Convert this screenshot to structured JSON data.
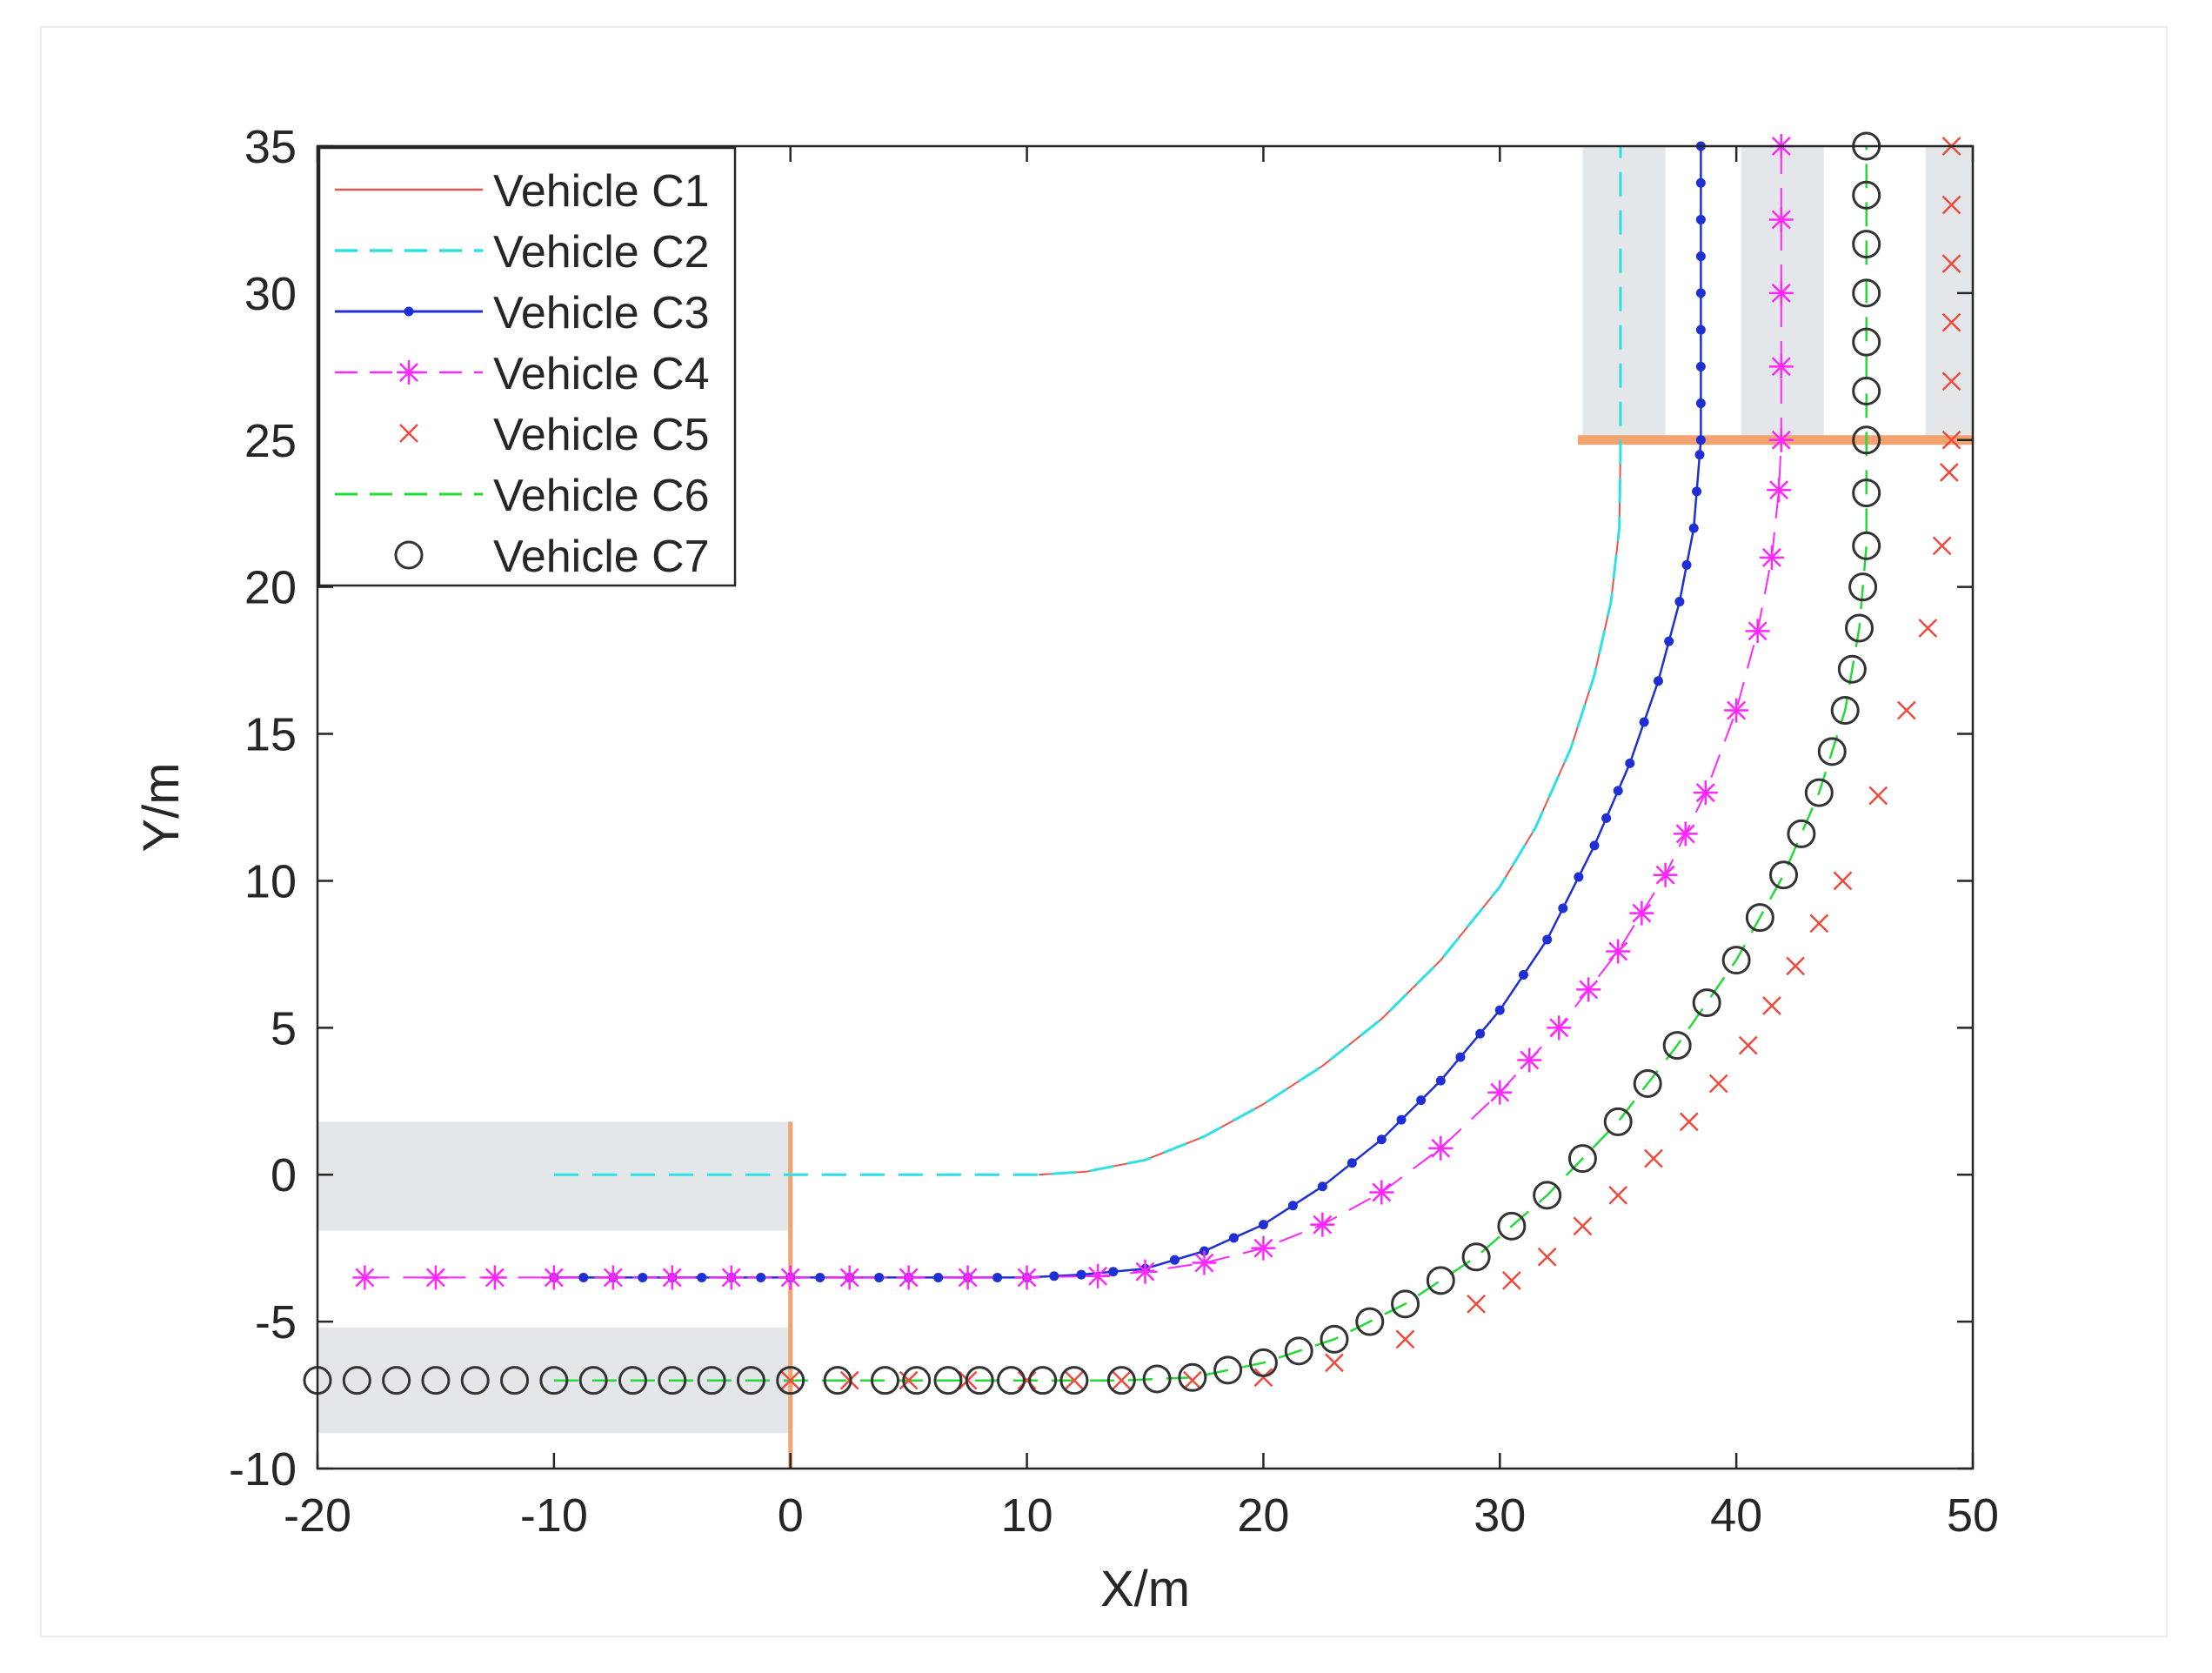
{
  "chart_data": {
    "type": "line",
    "title": "",
    "xlabel": "X/m",
    "ylabel": "Y/m",
    "xlim": [
      -20,
      50
    ],
    "ylim": [
      -10,
      35
    ],
    "xticks": [
      -20,
      -10,
      0,
      10,
      20,
      30,
      40,
      50
    ],
    "yticks": [
      -10,
      -5,
      0,
      5,
      10,
      15,
      20,
      25,
      30,
      35
    ],
    "xtick_labels": [
      "-20",
      "-10",
      "0",
      "10",
      "20",
      "30",
      "40",
      "50"
    ],
    "ytick_labels": [
      "-10",
      "-5",
      "0",
      "5",
      "10",
      "15",
      "20",
      "25",
      "30",
      "35"
    ],
    "grid": false,
    "legend_position": "top-left",
    "shaded_zones": [
      {
        "x": [
          -20,
          0
        ],
        "y": [
          -1.9,
          1.8
        ]
      },
      {
        "x": [
          -20,
          0
        ],
        "y": [
          -8.8,
          -5.2
        ]
      },
      {
        "x": [
          33.5,
          37.0
        ],
        "y": [
          25,
          35
        ]
      },
      {
        "x": [
          40.2,
          43.7
        ],
        "y": [
          25,
          35
        ]
      },
      {
        "x": [
          48.0,
          50.0
        ],
        "y": [
          25,
          35
        ]
      }
    ],
    "stop_lines": [
      {
        "x": [
          0,
          0
        ],
        "y": [
          -10,
          1.8
        ]
      },
      {
        "x": [
          33.3,
          50
        ],
        "y": [
          25,
          25
        ]
      }
    ],
    "series": [
      {
        "name": "Vehicle C1",
        "color": "#e8534a",
        "style": "solid",
        "marker": "none",
        "width": 2,
        "x": [
          10.5,
          12.5,
          15,
          17.5,
          20,
          22.5,
          25,
          27.5,
          30,
          31.5,
          33,
          34,
          34.7,
          35.05,
          35.1,
          35.1
        ],
        "y": [
          0,
          0.1,
          0.5,
          1.3,
          2.4,
          3.7,
          5.3,
          7.3,
          9.8,
          11.8,
          14.5,
          17,
          19.5,
          22,
          24.5,
          25
        ]
      },
      {
        "name": "Vehicle C2",
        "color": "#2ee0e6",
        "style": "dashed",
        "marker": "none",
        "width": 3,
        "x": [
          -10,
          -5,
          0,
          5,
          10.5,
          12.5,
          15,
          17.5,
          20,
          22.5,
          25,
          27.5,
          30,
          31.5,
          33,
          34,
          34.7,
          35.05,
          35.1,
          35.1,
          35.1
        ],
        "y": [
          0,
          0,
          0,
          0,
          0,
          0.1,
          0.5,
          1.3,
          2.4,
          3.7,
          5.3,
          7.3,
          9.8,
          11.8,
          14.5,
          17,
          19.5,
          22,
          24.5,
          30,
          35
        ]
      },
      {
        "name": "Vehicle C3",
        "color": "#1f2fd6",
        "style": "solid",
        "marker": "dot",
        "width": 2.5,
        "x": [
          -10,
          -5,
          0,
          5,
          10,
          12.3,
          15,
          17.5,
          20,
          22.5,
          25,
          27.5,
          30,
          32,
          34,
          35.5,
          36.7,
          37.6,
          38.2,
          38.45,
          38.5,
          38.5,
          38.5
        ],
        "y": [
          -3.5,
          -3.5,
          -3.5,
          -3.5,
          -3.5,
          -3.4,
          -3.2,
          -2.6,
          -1.7,
          -0.4,
          1.2,
          3.2,
          5.6,
          8.0,
          11.2,
          14.0,
          16.8,
          19.5,
          22,
          24.5,
          25,
          30,
          35
        ]
      },
      {
        "name": "Vehicle C4",
        "color": "#ff26ff",
        "style": "dashed",
        "marker": "star",
        "width": 2,
        "x": [
          -18,
          -15,
          -10,
          -5,
          0,
          5,
          10,
          13,
          15,
          17.5,
          20,
          22.5,
          25,
          27.5,
          30,
          32.5,
          35,
          37,
          38.7,
          40,
          40.9,
          41.5,
          41.8,
          41.9,
          41.9,
          41.9
        ],
        "y": [
          -3.5,
          -3.5,
          -3.5,
          -3.5,
          -3.5,
          -3.5,
          -3.5,
          -3.45,
          -3.3,
          -3.0,
          -2.5,
          -1.7,
          -0.6,
          0.9,
          2.8,
          5.0,
          7.6,
          10.2,
          13.0,
          15.8,
          18.5,
          21.0,
          23.3,
          25,
          30,
          35
        ]
      },
      {
        "name": "Vehicle C5",
        "color": "#f04a3e",
        "style": "none",
        "marker": "x",
        "width": 2,
        "x": [
          0,
          5,
          10,
          14,
          17,
          20,
          23,
          26,
          29,
          32,
          35,
          38,
          40.5,
          42.5,
          44.5,
          46,
          47.2,
          48.1,
          48.7,
          49.0,
          49.1,
          49.1
        ],
        "y": [
          -7,
          -7,
          -7,
          -7,
          -7,
          -6.9,
          -6.4,
          -5.6,
          -4.4,
          -2.8,
          -0.7,
          1.8,
          4.4,
          7.1,
          10.0,
          12.9,
          15.8,
          18.6,
          21.4,
          23.9,
          25,
          35
        ]
      },
      {
        "name": "Vehicle C6",
        "color": "#22dc36",
        "style": "dashed",
        "marker": "none",
        "width": 2.5,
        "x": [
          -10,
          -5,
          0,
          5,
          10,
          14,
          17,
          20,
          23,
          26,
          29,
          32,
          35,
          37.5,
          40,
          42,
          43.5,
          44.6,
          45.2,
          45.5,
          45.5,
          45.5
        ],
        "y": [
          -7,
          -7,
          -7,
          -7,
          -7,
          -7,
          -6.9,
          -6.4,
          -5.6,
          -4.4,
          -2.8,
          -0.7,
          1.8,
          4.4,
          7.3,
          10.2,
          13.0,
          15.8,
          18.6,
          21.4,
          25,
          35
        ]
      },
      {
        "name": "Vehicle C7",
        "color": "#333333",
        "style": "none",
        "marker": "circle",
        "width": 2,
        "x": [
          -20,
          -15,
          -10,
          -5,
          0,
          2,
          4,
          8,
          12,
          14,
          17,
          20,
          23,
          26,
          29,
          32,
          35,
          37.5,
          40,
          42,
          43.5,
          44.6,
          45.2,
          45.5,
          45.5,
          45.5
        ],
        "y": [
          -7,
          -7,
          -7,
          -7,
          -7,
          -7,
          -7,
          -7,
          -7,
          -7,
          -6.9,
          -6.4,
          -5.6,
          -4.4,
          -2.8,
          -0.7,
          1.8,
          4.4,
          7.3,
          10.2,
          13.0,
          15.8,
          18.6,
          21.4,
          25,
          35
        ]
      }
    ],
    "marker_count_hint": "markers placed roughly every 1.5 m of path length"
  },
  "colors": {
    "zone_fill": "#e3e7ea",
    "stop_line": "#f3a36f",
    "axis": "#262626"
  }
}
